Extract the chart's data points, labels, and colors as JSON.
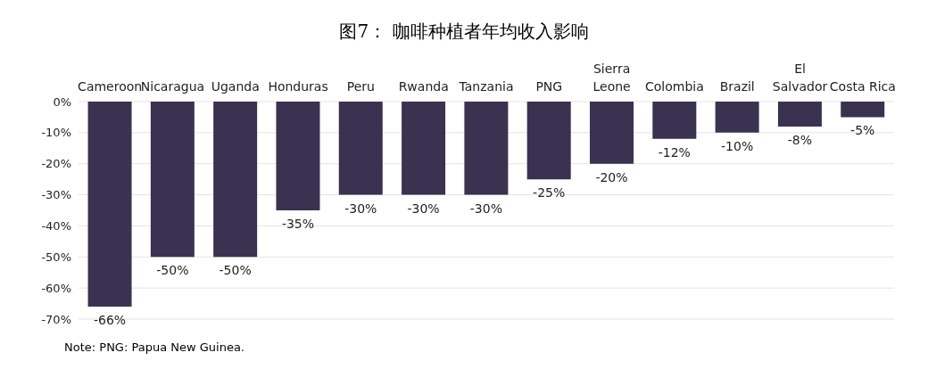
{
  "chart_data": {
    "type": "bar",
    "title": "图7： 咖啡种植者年均收入影响",
    "categories": [
      "Cameroon",
      "Nicaragua",
      "Uganda",
      "Honduras",
      "Peru",
      "Rwanda",
      "Tanzania",
      "PNG",
      "Sierra Leone",
      "Colombia",
      "Brazil",
      "El Salvador",
      "Costa Rica"
    ],
    "values": [
      -66,
      -50,
      -50,
      -35,
      -30,
      -30,
      -30,
      -25,
      -20,
      -12,
      -10,
      -8,
      -5
    ],
    "value_labels": [
      "-66%",
      "-50%",
      "-50%",
      "-35%",
      "-30%",
      "-30%",
      "-30%",
      "-25%",
      "-20%",
      "-12%",
      "-10%",
      "-8%",
      "-5%"
    ],
    "color": "#3b3150",
    "ylim": [
      -70,
      0
    ],
    "yticks": [
      {
        "value": 0,
        "label": "0%"
      },
      {
        "value": -10,
        "label": "-10%"
      },
      {
        "value": -20,
        "label": "-20%"
      },
      {
        "value": -30,
        "label": "-30%"
      },
      {
        "value": -40,
        "label": "-40%"
      },
      {
        "value": -50,
        "label": "-50%"
      },
      {
        "value": -60,
        "label": "-60%"
      },
      {
        "value": -70,
        "label": "-70%"
      }
    ],
    "grid": "y",
    "annotations": [
      "Note: PNG: Papua New Guinea."
    ]
  }
}
